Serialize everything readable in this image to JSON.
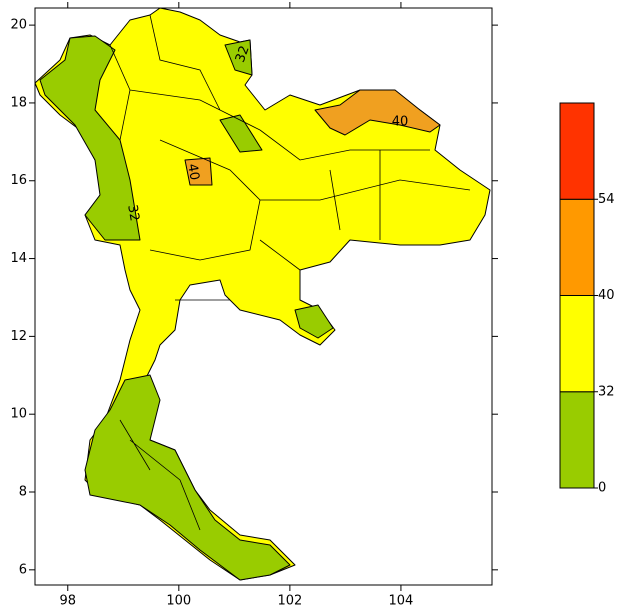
{
  "map": {
    "xlim": [
      97.41,
      105.64
    ],
    "ylim": [
      5.61,
      20.44
    ],
    "xticks": [
      98,
      100,
      102,
      104
    ],
    "yticks": [
      6,
      8,
      10,
      12,
      14,
      16,
      18,
      20
    ],
    "colorbar": {
      "levels": [
        0,
        32,
        40,
        54
      ],
      "colors": [
        "#99cc00",
        "#ffff00",
        "#ff9900",
        "#ff3300"
      ]
    },
    "contour_labels": [
      "32",
      "40",
      "40",
      "32"
    ]
  }
}
